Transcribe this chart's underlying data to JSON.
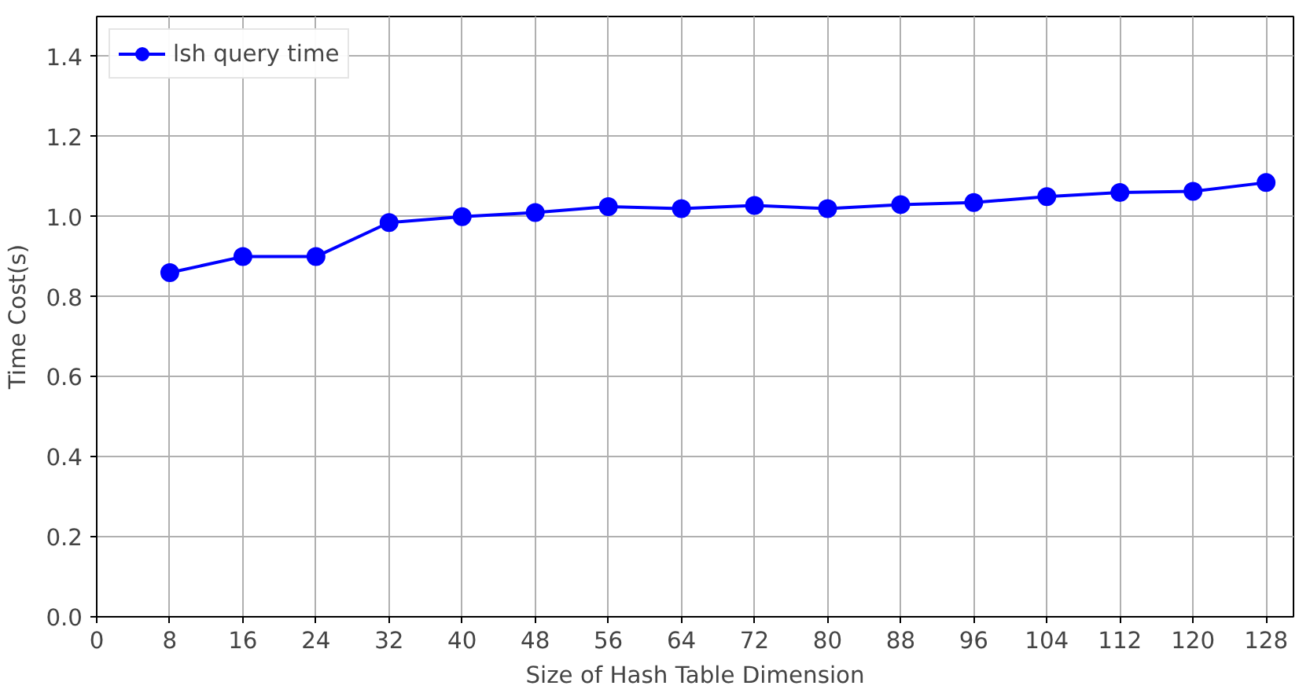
{
  "chart_data": {
    "type": "line",
    "xlabel": "Size of Hash Table Dimension",
    "ylabel": "Time Cost(s)",
    "x": [
      8,
      16,
      24,
      32,
      40,
      48,
      56,
      64,
      72,
      80,
      88,
      96,
      104,
      112,
      120,
      128
    ],
    "series": [
      {
        "name": "lsh query time",
        "color": "#0000ff",
        "values": [
          0.86,
          0.9,
          0.9,
          0.985,
          1.0,
          1.01,
          1.025,
          1.02,
          1.028,
          1.02,
          1.03,
          1.035,
          1.05,
          1.06,
          1.063,
          1.085
        ]
      }
    ],
    "xlim": [
      0,
      131
    ],
    "ylim": [
      0,
      1.5
    ],
    "xticks": [
      0,
      8,
      16,
      24,
      32,
      40,
      48,
      56,
      64,
      72,
      80,
      88,
      96,
      104,
      112,
      120,
      128
    ],
    "yticks": [
      {
        "value": 0,
        "label": "0.0"
      },
      {
        "value": 0.2,
        "label": "0.2"
      },
      {
        "value": 0.4,
        "label": "0.4"
      },
      {
        "value": 0.6,
        "label": "0.6"
      },
      {
        "value": 0.8,
        "label": "0.8"
      },
      {
        "value": 1.0,
        "label": "1.0"
      },
      {
        "value": 1.2,
        "label": "1.2"
      },
      {
        "value": 1.4,
        "label": "1.4"
      }
    ],
    "grid": true,
    "legend": "top left",
    "marker": "circle",
    "line_style": "solid"
  }
}
